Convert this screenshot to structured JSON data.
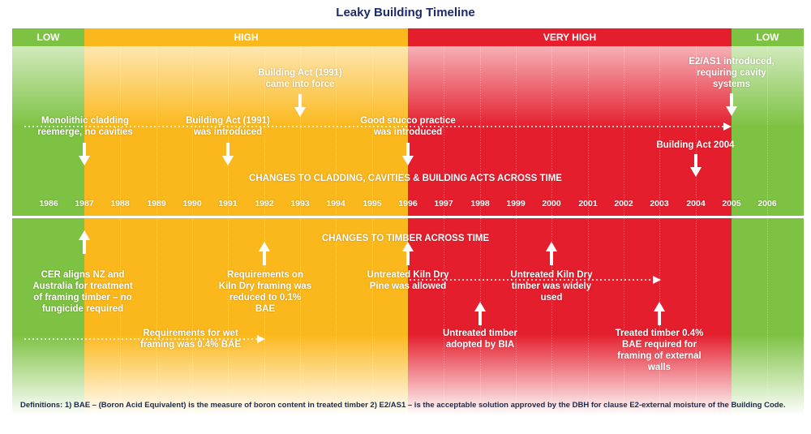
{
  "title": "Leaky Building Timeline",
  "colors": {
    "low": "#7dc242",
    "high": "#fbb81c",
    "very_high": "#e41e2d",
    "title": "#1a2a6c"
  },
  "bands": [
    {
      "label": "LOW",
      "risk": "low",
      "from_year": 1985.5,
      "to_year": 1987
    },
    {
      "label": "HIGH",
      "risk": "high",
      "from_year": 1987,
      "to_year": 1996
    },
    {
      "label": "VERY HIGH",
      "risk": "very_high",
      "from_year": 1996,
      "to_year": 2005
    },
    {
      "label": "LOW",
      "risk": "low",
      "from_year": 2005,
      "to_year": 2007
    }
  ],
  "years": [
    "1986",
    "1987",
    "1988",
    "1989",
    "1990",
    "1991",
    "1992",
    "1993",
    "1994",
    "1995",
    "1996",
    "1997",
    "1998",
    "1999",
    "2000",
    "2001",
    "2002",
    "2003",
    "2004",
    "2005",
    "2006"
  ],
  "cladding_heading": "CHANGES TO CLADDING, CAVITIES & BUILDING ACTS ACROSS TIME",
  "timber_heading": "CHANGES TO TIMBER ACROSS TIME",
  "cladding_events": [
    {
      "text_lines": [
        "Monolithic cladding",
        "reemerge, no cavities"
      ],
      "year": 1987
    },
    {
      "text_lines": [
        "Building Act (1991)",
        "was introduced"
      ],
      "year": 1991
    },
    {
      "text_lines": [
        "Building Act (1991)",
        "came into force"
      ],
      "year": 1993
    },
    {
      "text_lines": [
        "Good stucco practice",
        "was introduced"
      ],
      "year": 1996
    },
    {
      "text_lines": [
        "E2/AS1 introduced,",
        "requiring cavity",
        "systems"
      ],
      "year": 2005
    },
    {
      "text_lines": [
        "Building Act 2004"
      ],
      "year": 2004
    }
  ],
  "timber_events": [
    {
      "text_lines": [
        "CER aligns NZ and",
        "Australia for treatment",
        "of framing timber – no",
        "fungicide required"
      ],
      "year": 1987
    },
    {
      "text_lines": [
        "Requirements on",
        "Kiln Dry framing was",
        "reduced to 0.1%",
        "BAE"
      ],
      "year": 1992
    },
    {
      "text_lines": [
        "Untreated Kiln Dry",
        "Pine was allowed"
      ],
      "year": 1996
    },
    {
      "text_lines": [
        "Untreated Kiln Dry",
        "timber was widely",
        "used"
      ],
      "year": 2000
    },
    {
      "text_lines": [
        "Requirements for wet",
        "framing was 0.4% BAE"
      ],
      "year": 1992
    },
    {
      "text_lines": [
        "Untreated timber",
        "adopted by BIA"
      ],
      "year": 1998
    },
    {
      "text_lines": [
        "Treated timber 0.4%",
        "BAE required for",
        "framing of external",
        "walls"
      ],
      "year": 2003
    }
  ],
  "definitions": "Definitions: 1) BAE – (Boron Acid Equivalent) is the measure of boron content in treated timber 2) E2/AS1 – is the acceptable solution approved by the DBH for clause E2-external moisture of the Building Code."
}
